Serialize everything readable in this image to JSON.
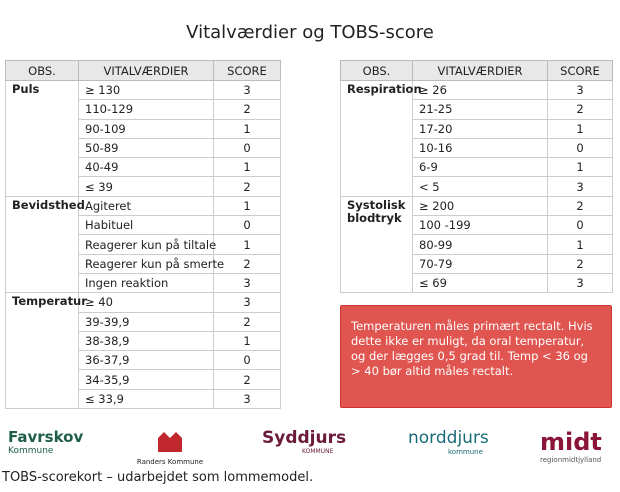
{
  "title": "Vitalværdier og TOBS-score",
  "tables": [
    {
      "headers": [
        "OBS.",
        "VITALVÆRDIER",
        "SCORE"
      ],
      "groups": [
        {
          "label": "Puls",
          "rows": [
            [
              "≥ 130",
              3
            ],
            [
              "110-129",
              2
            ],
            [
              "90-109",
              1
            ],
            [
              "50-89",
              0
            ],
            [
              "40-49",
              1
            ],
            [
              "≤ 39",
              2
            ]
          ]
        },
        {
          "label": "Bevidsthed",
          "rows": [
            [
              "Agiteret",
              1
            ],
            [
              "Habituel",
              0
            ],
            [
              "Reagerer kun på tiltale",
              1
            ],
            [
              "Reagerer kun på smerte",
              2
            ],
            [
              "Ingen reaktion",
              3
            ]
          ]
        },
        {
          "label": "Temperatur",
          "rows": [
            [
              "≥ 40",
              3
            ],
            [
              "39-39,9",
              2
            ],
            [
              "38-38,9",
              1
            ],
            [
              "36-37,9",
              0
            ],
            [
              "34-35,9",
              2
            ],
            [
              "≤ 33,9",
              3
            ]
          ]
        }
      ]
    },
    {
      "headers": [
        "OBS.",
        "VITALVÆRDIER",
        "SCORE"
      ],
      "groups": [
        {
          "label": "Respiration",
          "rows": [
            [
              "≥ 26",
              3
            ],
            [
              "21-25",
              2
            ],
            [
              "17-20",
              1
            ],
            [
              "10-16",
              0
            ],
            [
              "6-9",
              1
            ],
            [
              "< 5",
              3
            ]
          ]
        },
        {
          "label": "Systolisk blodtryk",
          "rows": [
            [
              "≥ 200",
              2
            ],
            [
              "100 -199",
              0
            ],
            [
              "80-99",
              1
            ],
            [
              "70-79",
              2
            ],
            [
              "≤ 69",
              3
            ]
          ]
        }
      ]
    }
  ],
  "note": "Temperaturen måles primært rectalt. Hvis dette ikke er muligt, da oral temperatur, og der lægges 0,5 grad til. Temp < 36 og > 40 bør altid måles rectalt.",
  "logos": [
    {
      "name": "Favrskov",
      "sub": "Kommune"
    },
    {
      "name": "Randers Kommune"
    },
    {
      "name": "Syddjurs",
      "sub": "KOMMUNE"
    },
    {
      "name": "norddjurs",
      "sub": "kommune"
    },
    {
      "name": "midt",
      "sub": "regionmidtjylland"
    }
  ],
  "footer": "TOBS-scorekort – udarbejdet som lommemodel."
}
